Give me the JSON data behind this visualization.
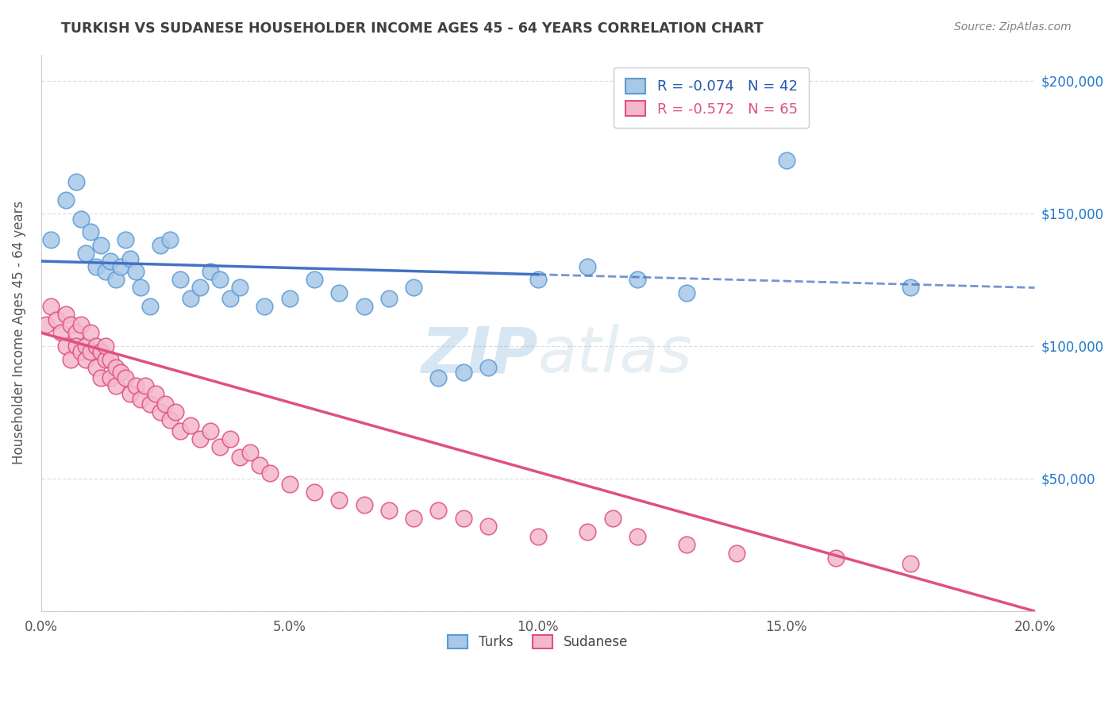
{
  "title": "TURKISH VS SUDANESE HOUSEHOLDER INCOME AGES 45 - 64 YEARS CORRELATION CHART",
  "source": "Source: ZipAtlas.com",
  "ylabel": "Householder Income Ages 45 - 64 years",
  "turks_R": -0.074,
  "turks_N": 42,
  "sudanese_R": -0.572,
  "sudanese_N": 65,
  "xlim": [
    0.0,
    0.2
  ],
  "ylim": [
    0,
    210000
  ],
  "yticks": [
    0,
    50000,
    100000,
    150000,
    200000
  ],
  "ytick_labels_right": [
    "",
    "$50,000",
    "$100,000",
    "$150,000",
    "$200,000"
  ],
  "xtick_labels": [
    "0.0%",
    "5.0%",
    "10.0%",
    "15.0%",
    "20.0%"
  ],
  "xticks": [
    0.0,
    0.05,
    0.1,
    0.15,
    0.2
  ],
  "turks_color": "#a8c8e8",
  "turks_edge_color": "#5b9bd5",
  "sudanese_color": "#f4b8cc",
  "sudanese_edge_color": "#e05080",
  "turks_line_color": "#4472c4",
  "sudanese_line_color": "#e05080",
  "watermark_color": "#c8dff0",
  "grid_color": "#d8d8d8",
  "background_color": "#ffffff",
  "title_color": "#404040",
  "source_color": "#808080",
  "turks_x": [
    0.002,
    0.005,
    0.007,
    0.008,
    0.009,
    0.01,
    0.011,
    0.012,
    0.013,
    0.014,
    0.015,
    0.016,
    0.017,
    0.018,
    0.019,
    0.02,
    0.022,
    0.024,
    0.026,
    0.028,
    0.03,
    0.032,
    0.034,
    0.036,
    0.038,
    0.04,
    0.045,
    0.05,
    0.055,
    0.06,
    0.065,
    0.07,
    0.075,
    0.08,
    0.085,
    0.09,
    0.1,
    0.11,
    0.12,
    0.13,
    0.15,
    0.175
  ],
  "turks_y": [
    140000,
    155000,
    162000,
    148000,
    135000,
    143000,
    130000,
    138000,
    128000,
    132000,
    125000,
    130000,
    140000,
    133000,
    128000,
    122000,
    115000,
    138000,
    140000,
    125000,
    118000,
    122000,
    128000,
    125000,
    118000,
    122000,
    115000,
    118000,
    125000,
    120000,
    115000,
    118000,
    122000,
    88000,
    90000,
    92000,
    125000,
    130000,
    125000,
    120000,
    170000,
    122000
  ],
  "sudanese_x": [
    0.001,
    0.002,
    0.003,
    0.004,
    0.005,
    0.005,
    0.006,
    0.006,
    0.007,
    0.007,
    0.008,
    0.008,
    0.009,
    0.009,
    0.01,
    0.01,
    0.011,
    0.011,
    0.012,
    0.012,
    0.013,
    0.013,
    0.014,
    0.014,
    0.015,
    0.015,
    0.016,
    0.017,
    0.018,
    0.019,
    0.02,
    0.021,
    0.022,
    0.023,
    0.024,
    0.025,
    0.026,
    0.027,
    0.028,
    0.03,
    0.032,
    0.034,
    0.036,
    0.038,
    0.04,
    0.042,
    0.044,
    0.046,
    0.05,
    0.055,
    0.06,
    0.065,
    0.07,
    0.075,
    0.08,
    0.085,
    0.09,
    0.1,
    0.11,
    0.115,
    0.12,
    0.13,
    0.14,
    0.16,
    0.175
  ],
  "sudanese_y": [
    108000,
    115000,
    110000,
    105000,
    112000,
    100000,
    108000,
    95000,
    105000,
    100000,
    98000,
    108000,
    100000,
    95000,
    105000,
    98000,
    100000,
    92000,
    98000,
    88000,
    95000,
    100000,
    88000,
    95000,
    92000,
    85000,
    90000,
    88000,
    82000,
    85000,
    80000,
    85000,
    78000,
    82000,
    75000,
    78000,
    72000,
    75000,
    68000,
    70000,
    65000,
    68000,
    62000,
    65000,
    58000,
    60000,
    55000,
    52000,
    48000,
    45000,
    42000,
    40000,
    38000,
    35000,
    38000,
    35000,
    32000,
    28000,
    30000,
    35000,
    28000,
    25000,
    22000,
    20000,
    18000
  ]
}
